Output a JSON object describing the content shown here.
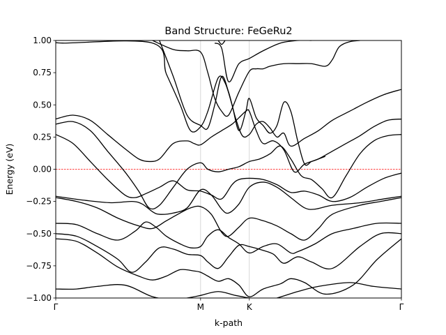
{
  "chart_data": {
    "type": "line",
    "title": "Band Structure: FeGeRu2",
    "xlabel": "k-path",
    "ylabel": "Energy (eV)",
    "ylim": [
      -1.0,
      1.0
    ],
    "xlim": [
      0,
      1
    ],
    "yticks": [
      -1.0,
      -0.75,
      -0.5,
      -0.25,
      0.0,
      0.25,
      0.5,
      0.75,
      1.0
    ],
    "ytick_labels": [
      "−1.00",
      "−0.75",
      "−0.50",
      "−0.25",
      "0.00",
      "0.25",
      "0.50",
      "0.75",
      "1.00"
    ],
    "kpoints": [
      {
        "label": "Γ",
        "x": 0.0
      },
      {
        "label": "M",
        "x": 0.419
      },
      {
        "label": "K",
        "x": 0.56
      },
      {
        "label": "Γ",
        "x": 1.0
      }
    ],
    "fermi_level": 0.0,
    "line_color": "#000000",
    "fermi_color": "#ff0000",
    "grid": false,
    "series": [
      {
        "x": [
          0,
          0.06,
          0.12,
          0.2,
          0.28,
          0.34,
          0.38,
          0.419,
          0.47,
          0.52,
          0.56,
          0.6,
          0.64,
          0.7,
          0.76,
          0.85,
          0.92,
          1.0
        ],
        "values": [
          -0.93,
          -0.93,
          -0.91,
          -0.9,
          -0.99,
          -1.01,
          -1.0,
          -0.98,
          -0.95,
          -0.98,
          -1.0,
          -1.02,
          -1.0,
          -0.95,
          -0.91,
          -0.88,
          -0.91,
          -0.93
        ]
      },
      {
        "x": [
          0,
          0.06,
          0.12,
          0.18,
          0.24,
          0.28,
          0.32,
          0.36,
          0.4,
          0.419,
          0.44,
          0.47,
          0.5,
          0.53,
          0.56,
          0.6,
          0.65,
          0.68,
          0.72,
          0.78,
          0.86,
          0.93,
          1.0
        ],
        "values": [
          -0.54,
          -0.56,
          -0.65,
          -0.76,
          -0.83,
          -0.86,
          -0.83,
          -0.78,
          -0.79,
          -0.8,
          -0.83,
          -0.87,
          -0.85,
          -0.9,
          -0.99,
          -0.93,
          -0.89,
          -0.85,
          -0.88,
          -0.97,
          -0.9,
          -0.7,
          -0.54
        ]
      },
      {
        "x": [
          0,
          0.06,
          0.12,
          0.18,
          0.22,
          0.26,
          0.3,
          0.34,
          0.38,
          0.419,
          0.44,
          0.47,
          0.5,
          0.53,
          0.56,
          0.6,
          0.63,
          0.66,
          0.7,
          0.74,
          0.8,
          0.88,
          0.94,
          1.0
        ],
        "values": [
          -0.5,
          -0.52,
          -0.6,
          -0.7,
          -0.8,
          -0.72,
          -0.61,
          -0.62,
          -0.66,
          -0.67,
          -0.72,
          -0.77,
          -0.68,
          -0.59,
          -0.6,
          -0.63,
          -0.66,
          -0.73,
          -0.68,
          -0.72,
          -0.77,
          -0.6,
          -0.5,
          -0.5
        ]
      },
      {
        "x": [
          0,
          0.06,
          0.12,
          0.18,
          0.23,
          0.26,
          0.29,
          0.32,
          0.36,
          0.39,
          0.419,
          0.44,
          0.47,
          0.5,
          0.53,
          0.56,
          0.6,
          0.64,
          0.68,
          0.7,
          0.75,
          0.8,
          0.86,
          0.93,
          1.0
        ],
        "values": [
          -0.42,
          -0.43,
          -0.5,
          -0.55,
          -0.48,
          -0.41,
          -0.45,
          -0.52,
          -0.58,
          -0.61,
          -0.6,
          -0.52,
          -0.47,
          -0.53,
          -0.58,
          -0.65,
          -0.6,
          -0.58,
          -0.65,
          -0.64,
          -0.58,
          -0.5,
          -0.46,
          -0.42,
          -0.42
        ]
      },
      {
        "x": [
          0,
          0.06,
          0.12,
          0.18,
          0.24,
          0.28,
          0.32,
          0.36,
          0.39,
          0.419,
          0.45,
          0.48,
          0.5,
          0.53,
          0.56,
          0.6,
          0.64,
          0.68,
          0.72,
          0.76,
          0.8,
          0.88,
          0.94,
          1.0
        ],
        "values": [
          -0.22,
          -0.25,
          -0.3,
          -0.38,
          -0.44,
          -0.46,
          -0.4,
          -0.34,
          -0.3,
          -0.29,
          -0.35,
          -0.49,
          -0.52,
          -0.45,
          -0.38,
          -0.4,
          -0.44,
          -0.5,
          -0.55,
          -0.46,
          -0.35,
          -0.28,
          -0.25,
          -0.22
        ]
      },
      {
        "x": [
          0,
          0.08,
          0.16,
          0.22,
          0.25,
          0.28,
          0.3,
          0.34,
          0.38,
          0.419,
          0.45,
          0.48,
          0.5,
          0.53,
          0.56,
          0.6,
          0.64,
          0.68,
          0.72,
          0.75,
          0.8,
          0.88,
          0.95,
          1.0
        ],
        "values": [
          -0.21,
          -0.24,
          -0.26,
          -0.25,
          -0.27,
          -0.33,
          -0.35,
          -0.34,
          -0.3,
          -0.16,
          -0.2,
          -0.31,
          -0.34,
          -0.27,
          -0.14,
          -0.1,
          -0.14,
          -0.22,
          -0.3,
          -0.31,
          -0.28,
          -0.26,
          -0.23,
          -0.21
        ]
      },
      {
        "x": [
          0,
          0.05,
          0.1,
          0.15,
          0.2,
          0.23,
          0.26,
          0.3,
          0.34,
          0.38,
          0.419,
          0.45,
          0.48,
          0.51,
          0.53,
          0.56,
          0.6,
          0.64,
          0.68,
          0.72,
          0.76,
          0.8,
          0.85,
          0.9,
          0.95,
          1.0
        ],
        "values": [
          0.27,
          0.2,
          0.06,
          -0.08,
          -0.2,
          -0.22,
          -0.19,
          -0.14,
          -0.09,
          -0.16,
          -0.17,
          -0.2,
          -0.23,
          -0.12,
          -0.08,
          -0.07,
          -0.08,
          -0.12,
          -0.18,
          -0.17,
          -0.2,
          -0.25,
          -0.22,
          -0.14,
          -0.07,
          -0.03
        ]
      },
      {
        "x": [
          0,
          0.05,
          0.1,
          0.15,
          0.2,
          0.24,
          0.27,
          0.3,
          0.34,
          0.38,
          0.419,
          0.44,
          0.47,
          0.5,
          0.53,
          0.56,
          0.59,
          0.62,
          0.65,
          0.68,
          0.71,
          0.74,
          0.77,
          0.8,
          0.84,
          0.88,
          0.92,
          0.96,
          1.0
        ],
        "values": [
          0.35,
          0.37,
          0.3,
          0.14,
          -0.02,
          -0.17,
          -0.3,
          -0.28,
          -0.14,
          0.0,
          0.05,
          0.0,
          -0.02,
          0.0,
          0.02,
          0.06,
          0.08,
          0.12,
          0.18,
          0.08,
          -0.05,
          -0.08,
          -0.15,
          -0.22,
          -0.05,
          0.12,
          0.22,
          0.26,
          0.27
        ]
      },
      {
        "x": [
          0,
          0.05,
          0.1,
          0.15,
          0.2,
          0.24,
          0.27,
          0.3,
          0.34,
          0.38,
          0.4,
          0.419,
          0.45,
          0.48,
          0.51,
          0.53,
          0.55,
          0.56,
          0.58,
          0.6,
          0.63,
          0.66,
          0.69,
          0.72,
          0.76,
          0.8,
          0.84,
          0.88,
          0.92,
          0.96,
          1.0
        ],
        "values": [
          0.39,
          0.42,
          0.38,
          0.27,
          0.16,
          0.08,
          0.06,
          0.08,
          0.2,
          0.22,
          0.2,
          0.19,
          0.25,
          0.3,
          0.35,
          0.4,
          0.45,
          0.45,
          0.3,
          0.2,
          0.22,
          0.15,
          -0.02,
          0.04,
          0.08,
          0.14,
          0.2,
          0.26,
          0.33,
          0.38,
          0.39
        ]
      },
      {
        "x": [
          0.0,
          0.02,
          0.28,
          0.32,
          0.36,
          0.39,
          0.419,
          0.44,
          0.47,
          0.49,
          0.51,
          0.53,
          0.55,
          0.56,
          0.58,
          0.6,
          0.62,
          0.64,
          0.66,
          0.68,
          0.7,
          0.72,
          0.74,
          0.76,
          0.78
        ],
        "values": [
          1.0,
          0.98,
          0.98,
          0.74,
          0.5,
          0.3,
          0.33,
          0.45,
          0.71,
          0.67,
          0.5,
          0.3,
          0.45,
          0.55,
          0.4,
          0.34,
          0.28,
          0.34,
          0.52,
          0.45,
          0.22,
          0.04,
          0.06,
          0.08,
          0.1
        ]
      },
      {
        "x": [
          0.3,
          0.34,
          0.38,
          0.419,
          0.44,
          0.46,
          0.48,
          0.5,
          0.52,
          0.54,
          0.56,
          0.58,
          0.6,
          0.62,
          0.64,
          0.66,
          0.68,
          0.72,
          0.76,
          0.8,
          0.85,
          0.9,
          0.95,
          1.0
        ],
        "values": [
          1.0,
          0.72,
          0.42,
          0.34,
          0.32,
          0.5,
          0.72,
          0.6,
          0.4,
          0.26,
          0.27,
          0.35,
          0.37,
          0.32,
          0.25,
          0.28,
          0.18,
          0.24,
          0.3,
          0.38,
          0.45,
          0.52,
          0.58,
          0.62
        ]
      },
      {
        "x": [
          0.28,
          0.34,
          0.38,
          0.419,
          0.44,
          0.46,
          0.48,
          0.5,
          0.53,
          0.56,
          0.58,
          0.6,
          0.62,
          0.66,
          0.7,
          0.74,
          0.78,
          0.8,
          0.82,
          0.85,
          0.88
        ],
        "values": [
          1.0,
          0.93,
          0.92,
          0.91,
          0.75,
          0.55,
          0.45,
          0.42,
          0.6,
          0.76,
          0.78,
          0.78,
          0.8,
          0.82,
          0.82,
          0.82,
          0.8,
          0.85,
          0.95,
          0.99,
          1.0
        ]
      },
      {
        "x": [
          0.46,
          0.48,
          0.5,
          0.53,
          0.56,
          0.6,
          0.65,
          0.7,
          0.74
        ],
        "values": [
          0.98,
          0.94,
          0.68,
          0.82,
          0.86,
          0.92,
          0.98,
          1.0,
          1.0
        ]
      },
      {
        "x": [
          0.47,
          0.48,
          0.49
        ],
        "values": [
          1.0,
          0.97,
          1.0
        ]
      }
    ]
  }
}
